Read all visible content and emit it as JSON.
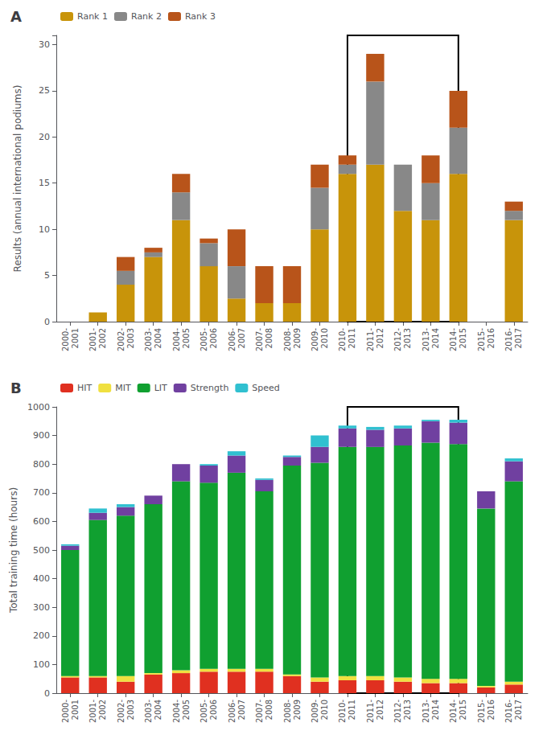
{
  "chart_data": [
    {
      "type": "bar",
      "title": "A",
      "y_label": "Results (annual international podiums)",
      "categories": [
        "2000-\n2001",
        "2001-\n2002",
        "2002-\n2003",
        "2003-\n2004",
        "2004-\n2005",
        "2005-\n2006",
        "2006-\n2007",
        "2007-\n2008",
        "2008-\n2009",
        "2009-\n2010",
        "2010-\n2011",
        "2011-\n2012",
        "2012-\n2013",
        "2013-\n2014",
        "2014-\n2015",
        "2015-\n2016",
        "2016-\n2017"
      ],
      "series": [
        {
          "name": "Rank 1",
          "color": "#C8940A",
          "values": [
            0,
            1,
            4,
            7,
            11,
            6,
            2.5,
            2,
            2,
            10,
            16,
            17,
            12,
            11,
            16,
            0,
            11
          ]
        },
        {
          "name": "Rank 2",
          "color": "#888888",
          "values": [
            0,
            0,
            1.5,
            0.5,
            3,
            2.5,
            3.5,
            0,
            0,
            4.5,
            1,
            9,
            5,
            4,
            5,
            0,
            1
          ]
        },
        {
          "name": "Rank 3",
          "color": "#B8541A",
          "values": [
            0,
            0,
            1.5,
            0.5,
            2,
            0.5,
            4,
            4,
            4,
            2.5,
            1,
            3,
            0,
            3,
            4,
            0,
            1
          ]
        }
      ],
      "stacked": true,
      "ylim": [
        0,
        31
      ],
      "yticks": [
        0,
        5,
        10,
        15,
        20,
        25,
        30
      ],
      "grid": false,
      "legend": "upper left",
      "highlight": [
        "2010-\n2011",
        "2014-\n2015"
      ]
    },
    {
      "type": "bar",
      "title": "B",
      "y_label": "Total training time (hours)",
      "categories": [
        "2000-\n2001",
        "2001-\n2002",
        "2002-\n2003",
        "2003-\n2004",
        "2004-\n2005",
        "2005-\n2006",
        "2006-\n2007",
        "2007-\n2008",
        "2008-\n2009",
        "2009-\n2010",
        "2010-\n2011",
        "2011-\n2012",
        "2012-\n2013",
        "2013-\n2014",
        "2014-\n2015",
        "2015-\n2016",
        "2016-\n2017"
      ],
      "series": [
        {
          "name": "HIT",
          "color": "#E03020",
          "values": [
            55,
            55,
            40,
            65,
            70,
            75,
            75,
            75,
            60,
            40,
            45,
            45,
            40,
            35,
            35,
            20,
            30
          ]
        },
        {
          "name": "MIT",
          "color": "#F0E040",
          "values": [
            5,
            5,
            20,
            5,
            10,
            10,
            10,
            10,
            5,
            15,
            15,
            15,
            15,
            15,
            15,
            5,
            10
          ]
        },
        {
          "name": "LIT",
          "color": "#10A030",
          "values": [
            440,
            545,
            560,
            590,
            660,
            650,
            685,
            620,
            730,
            750,
            800,
            800,
            810,
            825,
            820,
            620,
            700
          ]
        },
        {
          "name": "Strength",
          "color": "#7040A0",
          "values": [
            15,
            25,
            30,
            30,
            60,
            60,
            60,
            40,
            30,
            55,
            65,
            60,
            60,
            75,
            75,
            60,
            70
          ]
        },
        {
          "name": "Speed",
          "color": "#30C0D0",
          "values": [
            5,
            15,
            10,
            0,
            0,
            5,
            15,
            5,
            5,
            40,
            10,
            10,
            10,
            5,
            10,
            0,
            10
          ]
        }
      ],
      "stacked": true,
      "ylim": [
        0,
        1000
      ],
      "yticks": [
        0,
        100,
        200,
        300,
        400,
        500,
        600,
        700,
        800,
        900,
        1000
      ],
      "grid": false,
      "legend": "upper left",
      "highlight": [
        "2010-\n2011",
        "2014-\n2015"
      ]
    }
  ]
}
